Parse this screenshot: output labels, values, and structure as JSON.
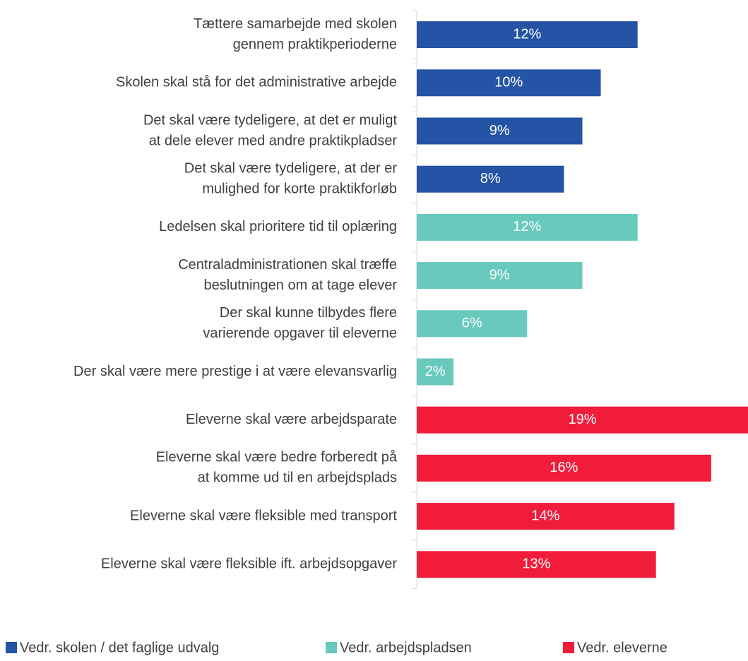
{
  "chart_data": {
    "type": "bar",
    "orientation": "horizontal",
    "categories": [
      [
        "Tættere samarbejde med skolen",
        "gennem praktikperioderne"
      ],
      [
        "Skolen skal stå for det administrative arbejde"
      ],
      [
        "Det skal være tydeligere, at det er muligt",
        "at dele elever med andre praktikpladser"
      ],
      [
        "Det skal være tydeligere, at der er",
        "mulighed for korte praktikforløb"
      ],
      [
        "Ledelsen skal prioritere tid til oplæring"
      ],
      [
        "Centraladministrationen skal træffe",
        "beslutningen om at tage elever"
      ],
      [
        "Der skal kunne tilbydes flere",
        "varierende opgaver til eleverne"
      ],
      [
        "Der skal være mere prestige i at være elevansvarlig"
      ],
      [
        "Eleverne skal være arbejdsparate"
      ],
      [
        "Eleverne skal være bedre forberedt på",
        "at komme ud til en arbejdsplads"
      ],
      [
        "Eleverne skal være fleksible med transport"
      ],
      [
        "Eleverne skal være fleksible ift. arbejdsopgaver"
      ]
    ],
    "series": [
      {
        "name": "Vedr. skolen / det faglige udvalg",
        "color": "#2553a5",
        "values": [
          12,
          10,
          9,
          8,
          null,
          null,
          null,
          null,
          null,
          null,
          null,
          null
        ],
        "value_labels": [
          "12%",
          "10%",
          "9%",
          "8%",
          null,
          null,
          null,
          null,
          null,
          null,
          null,
          null
        ]
      },
      {
        "name": "Vedr. arbejdspladsen",
        "color": "#68c9bd",
        "values": [
          null,
          null,
          null,
          null,
          12,
          9,
          6,
          2,
          null,
          null,
          null,
          null
        ],
        "value_labels": [
          null,
          null,
          null,
          null,
          "12%",
          "9%",
          "6%",
          "2%",
          null,
          null,
          null,
          null
        ]
      },
      {
        "name": "Vedr. eleverne",
        "color": "#f01c3a",
        "values": [
          null,
          null,
          null,
          null,
          null,
          null,
          null,
          null,
          19,
          16,
          14,
          13
        ],
        "value_labels": [
          null,
          null,
          null,
          null,
          null,
          null,
          null,
          null,
          "19%",
          "16%",
          "14%",
          "13%"
        ]
      }
    ],
    "xlim": [
      0,
      18
    ],
    "legend": "bottom"
  }
}
